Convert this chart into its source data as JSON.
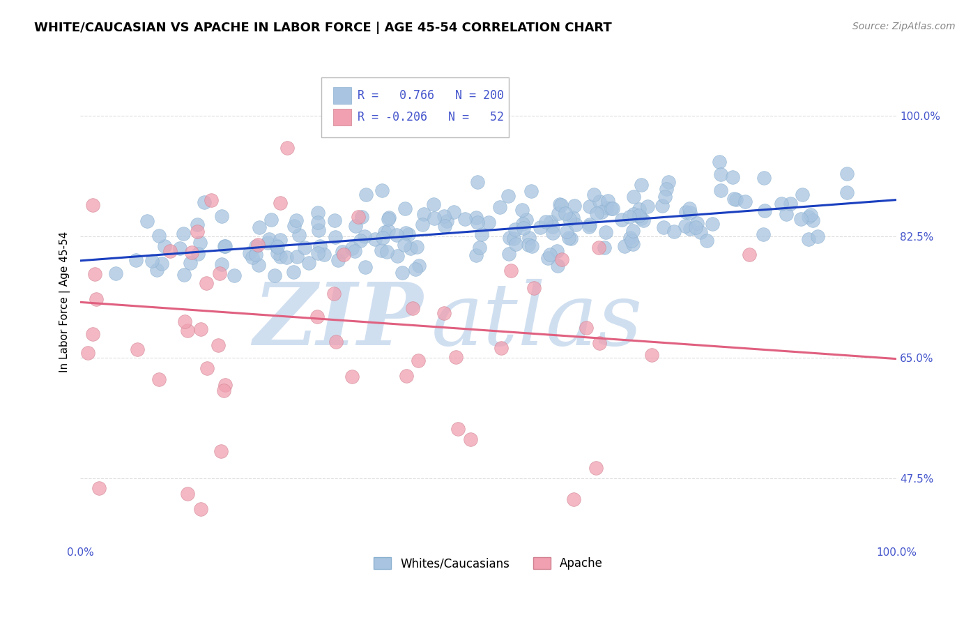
{
  "title": "WHITE/CAUCASIAN VS APACHE IN LABOR FORCE | AGE 45-54 CORRELATION CHART",
  "source": "Source: ZipAtlas.com",
  "ylabel": "In Labor Force | Age 45-54",
  "xlim": [
    0.0,
    1.0
  ],
  "ylim": [
    0.38,
    1.08
  ],
  "yticks": [
    0.475,
    0.65,
    0.825,
    1.0
  ],
  "ytick_labels": [
    "47.5%",
    "65.0%",
    "82.5%",
    "100.0%"
  ],
  "xticks": [
    0.0,
    1.0
  ],
  "xtick_labels": [
    "0.0%",
    "100.0%"
  ],
  "blue_R": 0.766,
  "blue_N": 200,
  "pink_R": -0.206,
  "pink_N": 52,
  "blue_color": "#a8c4e0",
  "pink_color": "#f0a0b0",
  "blue_line_color": "#1a3fbf",
  "pink_line_color": "#e06080",
  "watermark_zip": "ZIP",
  "watermark_atlas": "atlas",
  "watermark_color": "#d0dff0",
  "legend_blue_label": "Whites/Caucasians",
  "legend_pink_label": "Apache",
  "blue_scatter_seed": 42,
  "pink_scatter_seed": 7,
  "blue_line_start_x": 0.0,
  "blue_line_start_y": 0.79,
  "blue_line_end_x": 1.0,
  "blue_line_end_y": 0.878,
  "pink_line_start_x": 0.0,
  "pink_line_start_y": 0.73,
  "pink_line_end_x": 1.0,
  "pink_line_end_y": 0.648,
  "background_color": "#ffffff",
  "grid_color": "#dddddd",
  "title_fontsize": 13,
  "axis_label_fontsize": 11,
  "tick_fontsize": 11,
  "legend_fontsize": 12,
  "source_fontsize": 10,
  "tick_color": "#4455cc"
}
